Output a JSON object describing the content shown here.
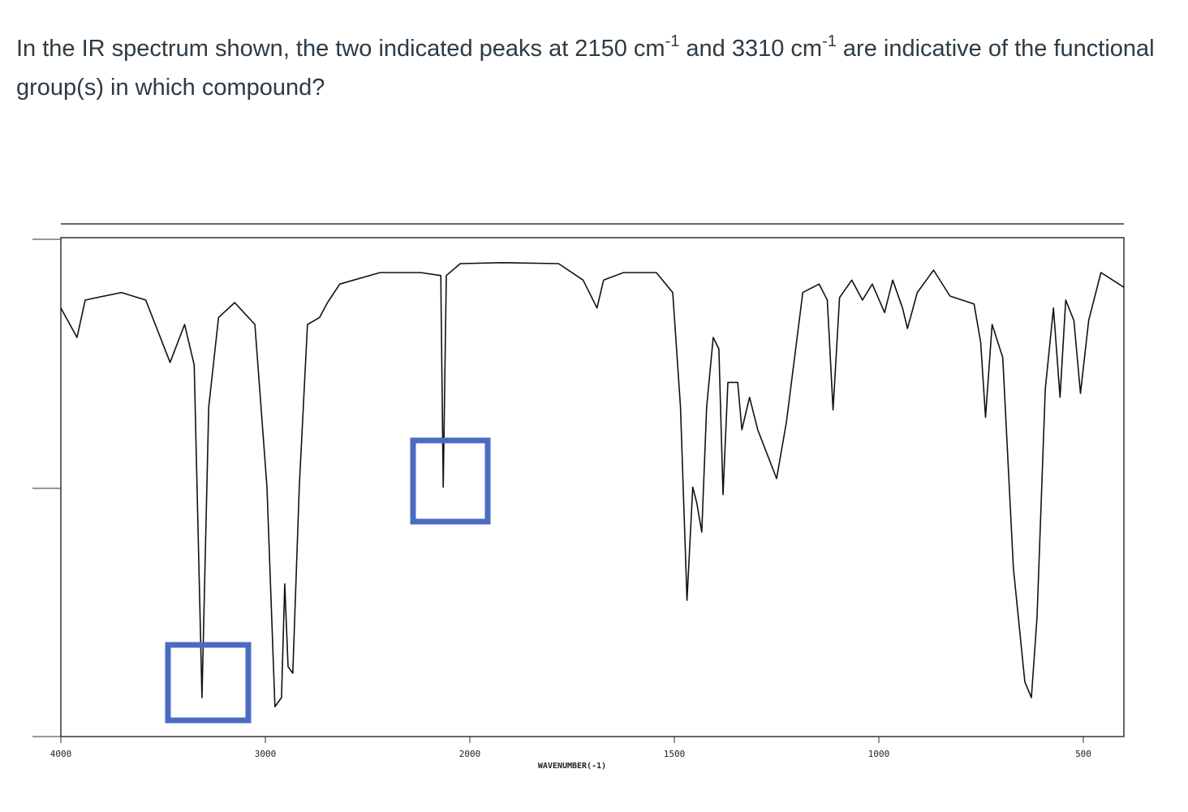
{
  "question": {
    "parts": [
      "In the IR spectrum shown, the two indicated peaks at 2150 cm",
      "-1",
      " and 3310 cm",
      "-1",
      " are indicative of the functional group(s) in which compound?"
    ]
  },
  "chart_data": {
    "type": "line",
    "xlabel": "WAVENUMBER(-1)",
    "color": "#111111",
    "xlim": [
      4000,
      400
    ],
    "xticks": [
      4000,
      3000,
      2000,
      1500,
      1000,
      500
    ],
    "ylim": [
      0,
      100
    ],
    "x": [
      4000,
      3921,
      3881,
      3704,
      3585,
      3466,
      3395,
      3348,
      3310,
      3277,
      3229,
      3150,
      3051,
      2992,
      2953,
      2921,
      2905,
      2889,
      2866,
      2834,
      2794,
      2735,
      2696,
      2636,
      2439,
      2241,
      2142,
      2130,
      2115,
      2047,
      1922,
      1783,
      1723,
      1689,
      1673,
      1624,
      1544,
      1504,
      1485,
      1469,
      1455,
      1445,
      1433,
      1421,
      1405,
      1391,
      1381,
      1369,
      1345,
      1335,
      1316,
      1296,
      1250,
      1226,
      1186,
      1146,
      1126,
      1112,
      1096,
      1066,
      1040,
      1016,
      986,
      966,
      942,
      930,
      906,
      866,
      826,
      767,
      751,
      739,
      723,
      697,
      671,
      643,
      627,
      613,
      593,
      573,
      557,
      543,
      523,
      507,
      487,
      457,
      428,
      400
    ],
    "values": [
      85.9,
      80,
      87.5,
      89,
      87.5,
      75,
      82.6,
      74.5,
      7.8,
      66,
      84,
      87,
      82.6,
      50,
      6,
      7.8,
      30.6,
      14,
      12.7,
      50,
      82.6,
      84,
      87,
      90.7,
      93,
      93,
      92.4,
      50,
      92.4,
      94.8,
      95,
      94.8,
      91.5,
      85.9,
      91.5,
      93,
      93,
      89,
      66,
      27.3,
      50,
      46.8,
      41,
      66,
      80,
      77.7,
      48.5,
      71,
      71,
      61.5,
      68,
      61.5,
      51.7,
      63,
      89,
      90.7,
      87.5,
      65.5,
      88,
      91.5,
      87.5,
      90.7,
      85,
      91.5,
      85.9,
      81.8,
      89,
      93.5,
      88.3,
      86.7,
      79,
      64,
      82.6,
      76,
      33.8,
      11,
      7.8,
      24,
      69.6,
      85.9,
      68,
      87.5,
      83.4,
      68.8,
      83.4,
      93,
      91.5,
      90
    ]
  }
}
